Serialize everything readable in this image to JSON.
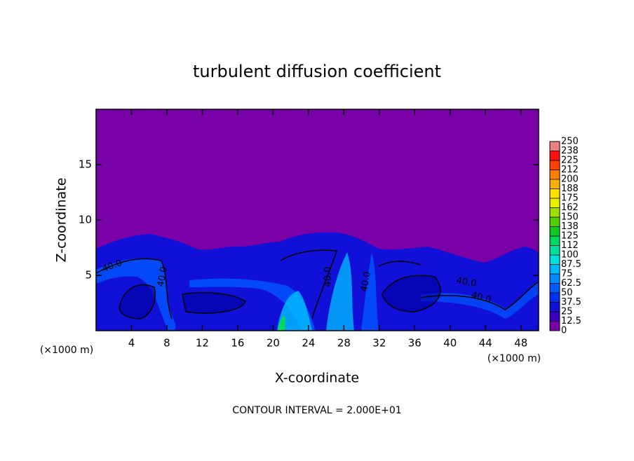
{
  "chart_data": {
    "type": "contour",
    "title": "turbulent diffusion coefficient",
    "xlabel": "X-coordinate",
    "ylabel": "Z-coordinate",
    "unit_label": "(×1000 m)",
    "note": "CONTOUR INTERVAL = 2.000E+01",
    "contour_label": "40.0",
    "xlim": [
      0,
      50
    ],
    "xticks": [
      4,
      8,
      12,
      16,
      20,
      24,
      28,
      32,
      36,
      40,
      44,
      48
    ],
    "ylim": [
      0,
      20
    ],
    "yticks": [
      5,
      10,
      15
    ],
    "levels": [
      0,
      12.5,
      25,
      37.5,
      50,
      62.5,
      75,
      87.5,
      100,
      {
        "value": 112.5,
        "label": "112"
      },
      125,
      {
        "value": 137.5,
        "label": "138"
      },
      150,
      {
        "value": 162.5,
        "label": "162"
      },
      175,
      {
        "value": 187.5,
        "label": "188"
      },
      200,
      {
        "value": 212.5,
        "label": "212"
      },
      225,
      {
        "value": 237.5,
        "label": "238"
      },
      250
    ],
    "colors": [
      "#7a00a8",
      "#3a00c0",
      "#1010d8",
      "#0030f0",
      "#0058ff",
      "#0088ff",
      "#00b8ff",
      "#00e0e0",
      "#00e0a0",
      "#00d860",
      "#10c820",
      "#50d000",
      "#a0e000",
      "#e8f000",
      "#ffe000",
      "#ffb000",
      "#ff8000",
      "#ff4000",
      "#ff1010",
      "#f08080"
    ]
  }
}
